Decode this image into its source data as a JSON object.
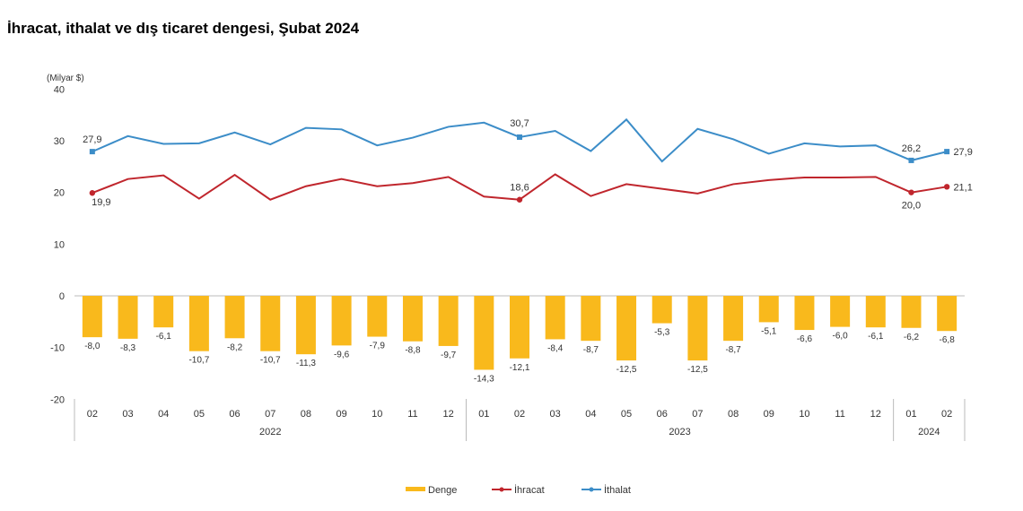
{
  "chart_data": {
    "type": "bar+line",
    "title": "İhracat, ithalat ve dış ticaret dengesi, Şubat 2024",
    "ylabel": "(Milyar $)",
    "ylim": [
      -20,
      40
    ],
    "yticks": [
      -20,
      -10,
      0,
      10,
      20,
      30,
      40
    ],
    "grid": false,
    "legend_position": "bottom",
    "categories": [
      "02",
      "03",
      "04",
      "05",
      "06",
      "07",
      "08",
      "09",
      "10",
      "11",
      "12",
      "01",
      "02",
      "03",
      "04",
      "05",
      "06",
      "07",
      "08",
      "09",
      "10",
      "11",
      "12",
      "01",
      "02"
    ],
    "years": [
      {
        "label": "2022",
        "count": 11
      },
      {
        "label": "2023",
        "count": 12
      },
      {
        "label": "2024",
        "count": 2
      }
    ],
    "series": [
      {
        "name": "Denge",
        "type": "bar",
        "color": "#F9B91C",
        "values": [
          -8.0,
          -8.3,
          -6.1,
          -10.7,
          -8.2,
          -10.7,
          -11.3,
          -9.6,
          -7.9,
          -8.8,
          -9.7,
          -14.3,
          -12.1,
          -8.4,
          -8.7,
          -12.5,
          -5.3,
          -12.5,
          -8.7,
          -5.1,
          -6.6,
          -6.0,
          -6.1,
          -6.2,
          -6.8
        ],
        "labels": [
          "-8,0",
          "-8,3",
          "-6,1",
          "-10,7",
          "-8,2",
          "-10,7",
          "-11,3",
          "-9,6",
          "-7,9",
          "-8,8",
          "-9,7",
          "-14,3",
          "-12,1",
          "-8,4",
          "-8,7",
          "-12,5",
          "-5,3",
          "-12,5",
          "-8,7",
          "-5,1",
          "-6,6",
          "-6,0",
          "-6,1",
          "-6,2",
          "-6,8"
        ]
      },
      {
        "name": "İhracat",
        "type": "line",
        "color": "#C0262D",
        "values": [
          19.9,
          22.6,
          23.3,
          18.8,
          23.4,
          18.6,
          21.2,
          22.6,
          21.2,
          21.8,
          23.0,
          19.2,
          18.6,
          23.5,
          19.3,
          21.6,
          20.7,
          19.8,
          21.6,
          22.4,
          22.9,
          22.9,
          23.0,
          20.0,
          21.1
        ],
        "labeled_points": [
          {
            "index": 0,
            "label": "19,9"
          },
          {
            "index": 12,
            "label": "18,6"
          },
          {
            "index": 23,
            "label": "20,0"
          },
          {
            "index": 24,
            "label": "21,1"
          }
        ]
      },
      {
        "name": "İthalat",
        "type": "line",
        "color": "#3C8DC8",
        "values": [
          27.9,
          30.9,
          29.4,
          29.5,
          31.6,
          29.3,
          32.5,
          32.2,
          29.1,
          30.6,
          32.7,
          33.5,
          30.7,
          31.9,
          28.0,
          34.1,
          26.0,
          32.3,
          30.3,
          27.5,
          29.5,
          28.9,
          29.1,
          26.2,
          27.9
        ],
        "labeled_points": [
          {
            "index": 0,
            "label": "27,9"
          },
          {
            "index": 12,
            "label": "30,7"
          },
          {
            "index": 23,
            "label": "26,2"
          },
          {
            "index": 24,
            "label": "27,9"
          }
        ]
      }
    ]
  }
}
